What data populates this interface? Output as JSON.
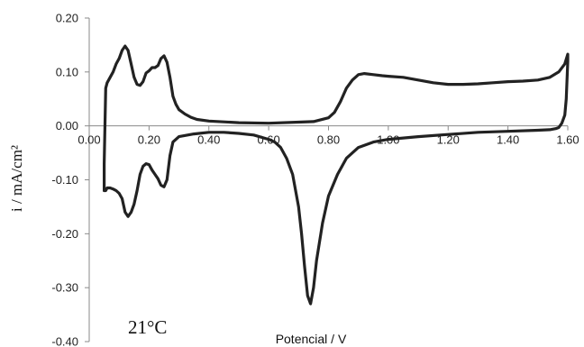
{
  "chart_data": {
    "type": "line",
    "title": "",
    "xlabel": "Potencial / V",
    "ylabel": "i / mA/cm²",
    "xlim": [
      0.0,
      1.6
    ],
    "ylim": [
      -0.4,
      0.2
    ],
    "x_ticks": [
      "0.00",
      "0.20",
      "0.40",
      "0.60",
      "0.80",
      "1.00",
      "1.20",
      "1.40",
      "1.60"
    ],
    "y_ticks": [
      "0.20",
      "0.10",
      "0.00",
      "-0.10",
      "-0.20",
      "-0.30",
      "-0.40"
    ],
    "grid": false,
    "annotation": "21°C",
    "line_color": "#222222",
    "series": [
      {
        "x": [
          0.05,
          0.055,
          0.06,
          0.07,
          0.08,
          0.09,
          0.1,
          0.11,
          0.12,
          0.13,
          0.14,
          0.15,
          0.16,
          0.17,
          0.18,
          0.19,
          0.2,
          0.21,
          0.22,
          0.23,
          0.24,
          0.25,
          0.26,
          0.27,
          0.28,
          0.29,
          0.3,
          0.32,
          0.34,
          0.36,
          0.4,
          0.5,
          0.6,
          0.7,
          0.75,
          0.8,
          0.82,
          0.84,
          0.86,
          0.88,
          0.9,
          0.92,
          0.95,
          0.98,
          1.0,
          1.05,
          1.1,
          1.15,
          1.2,
          1.25,
          1.3,
          1.35,
          1.4,
          1.45,
          1.5,
          1.54,
          1.57,
          1.59,
          1.6,
          1.6,
          1.595,
          1.59,
          1.58,
          1.57,
          1.56,
          1.54,
          1.5,
          1.4,
          1.3,
          1.2,
          1.1,
          1.0,
          0.95,
          0.9,
          0.86,
          0.83,
          0.8,
          0.78,
          0.76,
          0.75,
          0.74,
          0.73,
          0.72,
          0.71,
          0.7,
          0.68,
          0.66,
          0.64,
          0.62,
          0.6,
          0.55,
          0.5,
          0.45,
          0.4,
          0.35,
          0.3,
          0.28,
          0.27,
          0.26,
          0.25,
          0.24,
          0.23,
          0.22,
          0.21,
          0.2,
          0.19,
          0.18,
          0.17,
          0.16,
          0.15,
          0.14,
          0.13,
          0.12,
          0.11,
          0.1,
          0.09,
          0.08,
          0.07,
          0.06,
          0.055,
          0.05,
          0.05
        ],
        "y": [
          -0.07,
          0.07,
          0.08,
          0.09,
          0.1,
          0.115,
          0.125,
          0.14,
          0.148,
          0.14,
          0.115,
          0.09,
          0.077,
          0.075,
          0.082,
          0.098,
          0.102,
          0.108,
          0.108,
          0.112,
          0.125,
          0.13,
          0.118,
          0.09,
          0.055,
          0.04,
          0.03,
          0.022,
          0.016,
          0.012,
          0.009,
          0.006,
          0.005,
          0.007,
          0.008,
          0.015,
          0.025,
          0.045,
          0.07,
          0.085,
          0.095,
          0.097,
          0.095,
          0.093,
          0.092,
          0.09,
          0.085,
          0.08,
          0.077,
          0.077,
          0.078,
          0.08,
          0.082,
          0.083,
          0.085,
          0.09,
          0.1,
          0.115,
          0.133,
          0.12,
          0.05,
          0.02,
          0.005,
          -0.003,
          -0.005,
          -0.007,
          -0.008,
          -0.01,
          -0.012,
          -0.016,
          -0.02,
          -0.025,
          -0.03,
          -0.04,
          -0.06,
          -0.09,
          -0.13,
          -0.18,
          -0.25,
          -0.3,
          -0.33,
          -0.315,
          -0.26,
          -0.2,
          -0.15,
          -0.09,
          -0.06,
          -0.04,
          -0.03,
          -0.025,
          -0.017,
          -0.014,
          -0.012,
          -0.012,
          -0.015,
          -0.02,
          -0.03,
          -0.055,
          -0.1,
          -0.113,
          -0.11,
          -0.098,
          -0.09,
          -0.082,
          -0.072,
          -0.07,
          -0.075,
          -0.09,
          -0.12,
          -0.145,
          -0.16,
          -0.168,
          -0.16,
          -0.135,
          -0.125,
          -0.12,
          -0.117,
          -0.115,
          -0.115,
          -0.12,
          -0.12,
          -0.07
        ]
      }
    ]
  }
}
